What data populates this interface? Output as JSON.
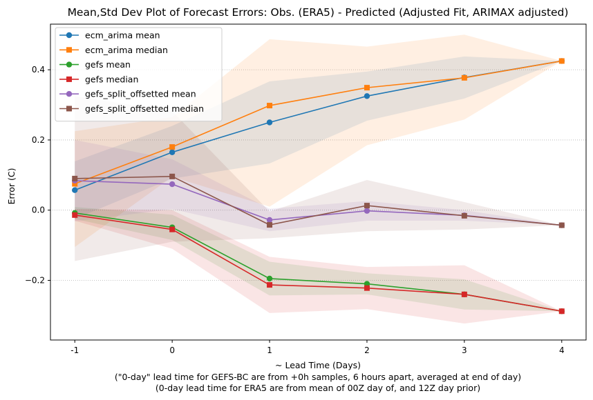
{
  "chart_data": {
    "type": "line",
    "title": "Mean,Std Dev Plot of Forecast Errors: Obs. (ERA5) - Predicted (Adjusted Fit, ARIMAX adjusted)",
    "xlabel": "~ Lead Time (Days)",
    "xlabel_notes": [
      "(\"0-day\" lead time for GEFS-BC are from +0h samples, 6 hours apart, averaged at end of day)",
      "(0-day lead time for ERA5 are from mean of 00Z day of, and 12Z day prior)"
    ],
    "ylabel": "Error (C)",
    "x": [
      -1,
      0,
      1,
      2,
      3,
      4
    ],
    "x_tick_labels": [
      "-1",
      "0",
      "1",
      "2",
      "3",
      "4"
    ],
    "xlim": [
      -1.25,
      4.25
    ],
    "ylim": [
      -0.37,
      0.53
    ],
    "yticks": [
      -0.2,
      0.0,
      0.2,
      0.4
    ],
    "y_tick_labels": [
      "−0.2",
      "0.0",
      "0.2",
      "0.4"
    ],
    "grid": "horizontal dotted",
    "legend_position": "top-left",
    "series": [
      {
        "name": "ecm_arima mean",
        "marker": "circle",
        "color": "#1f77b4",
        "values": [
          0.057,
          0.165,
          0.25,
          0.325,
          0.378,
          0.425
        ],
        "band_lower": [
          -0.025,
          0.09,
          0.133,
          0.255,
          0.318,
          0.425
        ],
        "band_upper": [
          0.139,
          0.24,
          0.367,
          0.395,
          0.438,
          0.425
        ]
      },
      {
        "name": "ecm_arima median",
        "marker": "square",
        "color": "#ff7f0e",
        "values": [
          0.075,
          0.18,
          0.298,
          0.349,
          0.377,
          0.425
        ],
        "band_lower": [
          -0.105,
          0.095,
          0.01,
          0.185,
          0.258,
          0.425
        ],
        "band_upper": [
          0.225,
          0.265,
          0.487,
          0.466,
          0.5,
          0.425
        ]
      },
      {
        "name": "gefs mean",
        "marker": "circle",
        "color": "#2ca02c",
        "values": [
          -0.008,
          -0.049,
          -0.195,
          -0.21,
          -0.24,
          -0.288
        ],
        "band_lower": [
          -0.025,
          -0.085,
          -0.243,
          -0.24,
          -0.283,
          -0.288
        ],
        "band_upper": [
          0.009,
          -0.013,
          -0.147,
          -0.18,
          -0.197,
          -0.288
        ]
      },
      {
        "name": "gefs median",
        "marker": "square",
        "color": "#d62728",
        "values": [
          -0.014,
          -0.055,
          -0.213,
          -0.222,
          -0.24,
          -0.288
        ],
        "band_lower": [
          -0.03,
          -0.11,
          -0.293,
          -0.282,
          -0.323,
          -0.288
        ],
        "band_upper": [
          0.003,
          0.0,
          -0.133,
          -0.162,
          -0.157,
          -0.288
        ]
      },
      {
        "name": "gefs_split_offsetted mean",
        "marker": "circle",
        "color": "#9467bd",
        "values": [
          0.084,
          0.074,
          -0.028,
          -0.002,
          -0.015,
          -0.043
        ],
        "band_lower": [
          -0.032,
          0.003,
          -0.06,
          -0.03,
          -0.03,
          -0.043
        ],
        "band_upper": [
          0.2,
          0.145,
          0.004,
          0.026,
          0.0,
          -0.043
        ]
      },
      {
        "name": "gefs_split_offsetted median",
        "marker": "square",
        "color": "#8c564b",
        "values": [
          0.09,
          0.096,
          -0.042,
          0.013,
          -0.016,
          -0.043
        ],
        "band_lower": [
          -0.145,
          -0.09,
          -0.08,
          -0.06,
          -0.055,
          -0.043
        ],
        "band_upper": [
          0.325,
          0.282,
          -0.004,
          0.086,
          0.023,
          -0.043
        ]
      }
    ]
  }
}
